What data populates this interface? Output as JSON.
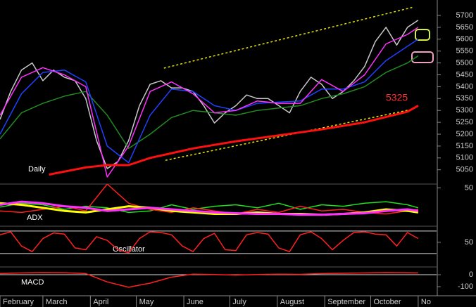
{
  "chart_data": [
    {
      "type": "line",
      "label": "Daily",
      "annotation": "5325",
      "xlim": [
        0,
        285
      ],
      "ylim": [
        4990,
        5765
      ],
      "yticks": [
        5050,
        5100,
        5150,
        5200,
        5250,
        5300,
        5350,
        5400,
        5450,
        5500,
        5550,
        5600,
        5650,
        5700
      ],
      "series": [
        {
          "color": "#e6e600",
          "dash": true,
          "x": [
            107,
            270
          ],
          "values": [
            5478,
            5735
          ]
        },
        {
          "color": "#e6e600",
          "dash": true,
          "x": [
            108,
            270
          ],
          "values": [
            5090,
            5306
          ]
        },
        {
          "color": "#c8c8c8",
          "x": [
            0,
            7,
            14,
            21,
            28,
            35,
            42,
            49,
            56,
            63,
            70,
            77,
            84,
            91,
            98,
            105,
            112,
            119,
            126,
            133,
            140,
            147,
            154,
            161,
            168,
            175,
            182,
            189,
            196,
            203,
            210,
            217,
            224,
            231,
            238,
            245,
            252,
            259,
            266,
            273
          ],
          "values": [
            5262,
            5380,
            5470,
            5500,
            5425,
            5470,
            5440,
            5425,
            5350,
            5173,
            5055,
            5085,
            5173,
            5320,
            5410,
            5425,
            5395,
            5395,
            5380,
            5320,
            5247,
            5290,
            5320,
            5365,
            5350,
            5350,
            5320,
            5290,
            5380,
            5440,
            5410,
            5350,
            5380,
            5425,
            5485,
            5590,
            5650,
            5575,
            5650,
            5680
          ]
        },
        {
          "color": "#228b22",
          "x": [
            0,
            14,
            28,
            42,
            56,
            70,
            84,
            98,
            112,
            126,
            140,
            154,
            168,
            182,
            196,
            210,
            224,
            238,
            252,
            266,
            273
          ],
          "values": [
            5180,
            5290,
            5330,
            5360,
            5380,
            5280,
            5140,
            5200,
            5270,
            5300,
            5290,
            5280,
            5300,
            5310,
            5320,
            5350,
            5370,
            5400,
            5460,
            5500,
            5530
          ]
        },
        {
          "color": "#2040ff",
          "x": [
            0,
            14,
            28,
            42,
            56,
            70,
            84,
            98,
            112,
            126,
            140,
            154,
            168,
            182,
            196,
            210,
            224,
            238,
            252,
            266,
            273
          ],
          "values": [
            5200,
            5370,
            5460,
            5470,
            5420,
            5150,
            5080,
            5280,
            5390,
            5380,
            5320,
            5300,
            5330,
            5335,
            5340,
            5390,
            5390,
            5420,
            5510,
            5570,
            5600
          ]
        },
        {
          "color": "#ff30ff",
          "x": [
            0,
            14,
            28,
            42,
            56,
            70,
            84,
            98,
            112,
            126,
            140,
            154,
            168,
            182,
            196,
            210,
            224,
            238,
            252,
            266,
            273
          ],
          "values": [
            5280,
            5440,
            5480,
            5450,
            5400,
            5020,
            5150,
            5380,
            5420,
            5370,
            5290,
            5300,
            5340,
            5330,
            5330,
            5430,
            5380,
            5450,
            5580,
            5620,
            5650
          ]
        },
        {
          "color": "#ff1010",
          "width": 3,
          "x": [
            32,
            56,
            70,
            84,
            98,
            126,
            154,
            182,
            210,
            238,
            266,
            273
          ],
          "values": [
            5030,
            5060,
            5070,
            5070,
            5100,
            5140,
            5170,
            5195,
            5220,
            5250,
            5295,
            5320
          ]
        }
      ]
    },
    {
      "type": "line",
      "label": "ADX",
      "xlim": [
        0,
        285
      ],
      "ylim": [
        0,
        55
      ],
      "yticks": [
        50
      ],
      "series": [
        {
          "color": "#20e020",
          "x": [
            0,
            14,
            28,
            42,
            56,
            70,
            84,
            98,
            112,
            126,
            140,
            154,
            168,
            182,
            196,
            210,
            224,
            238,
            252,
            266,
            273
          ],
          "values": [
            25,
            30,
            28,
            22,
            26,
            24,
            18,
            20,
            28,
            22,
            26,
            28,
            24,
            30,
            22,
            28,
            26,
            30,
            32,
            28,
            24
          ]
        },
        {
          "color": "#ff2020",
          "x": [
            0,
            14,
            28,
            42,
            56,
            70,
            84,
            98,
            112,
            126,
            140,
            154,
            168,
            182,
            196,
            210,
            224,
            238,
            252,
            266,
            273
          ],
          "values": [
            20,
            18,
            22,
            26,
            20,
            55,
            30,
            22,
            18,
            24,
            20,
            16,
            22,
            18,
            26,
            20,
            22,
            18,
            16,
            20,
            22
          ]
        },
        {
          "color": "#ffff00",
          "width": 3,
          "x": [
            0,
            14,
            28,
            42,
            56,
            70,
            84,
            98,
            112,
            126,
            140,
            154,
            168,
            182,
            196,
            210,
            224,
            238,
            252,
            266,
            273
          ],
          "values": [
            30,
            28,
            24,
            20,
            18,
            22,
            26,
            24,
            20,
            18,
            16,
            16,
            18,
            16,
            16,
            15,
            16,
            18,
            22,
            20,
            18
          ]
        },
        {
          "color": "#ff30ff",
          "width": 3,
          "x": [
            0,
            14,
            28,
            42,
            56,
            70,
            84,
            98,
            112,
            126,
            140,
            154,
            168,
            182,
            196,
            210,
            224,
            238,
            252,
            266,
            273
          ],
          "values": [
            28,
            32,
            30,
            26,
            24,
            20,
            22,
            24,
            22,
            20,
            18,
            17,
            16,
            16,
            15,
            15,
            16,
            17,
            20,
            22,
            20
          ]
        }
      ]
    },
    {
      "type": "line",
      "label": "Oscillator",
      "xlim": [
        0,
        285
      ],
      "ylim": [
        -16,
        93
      ],
      "yticks": [
        50
      ],
      "hlines": [
        20,
        80
      ],
      "series": [
        {
          "color": "#ff2020",
          "x": [
            0,
            7,
            14,
            21,
            28,
            35,
            42,
            49,
            56,
            63,
            70,
            77,
            84,
            91,
            98,
            105,
            112,
            119,
            126,
            133,
            140,
            147,
            154,
            161,
            168,
            175,
            182,
            189,
            196,
            203,
            210,
            217,
            224,
            231,
            238,
            245,
            252,
            259,
            266,
            273
          ],
          "values": [
            70,
            78,
            40,
            25,
            60,
            75,
            72,
            35,
            30,
            65,
            55,
            30,
            22,
            60,
            78,
            76,
            70,
            40,
            25,
            60,
            74,
            30,
            28,
            70,
            76,
            72,
            35,
            25,
            70,
            78,
            60,
            30,
            55,
            76,
            78,
            72,
            70,
            40,
            76,
            60
          ]
        }
      ]
    },
    {
      "type": "line",
      "label": "MACD",
      "xlim": [
        0,
        285
      ],
      "ylim": [
        -176,
        65
      ],
      "yticks": [
        0,
        -100
      ],
      "hlines": [
        0
      ],
      "xticks": [
        {
          "value": 0,
          "label": "February"
        },
        {
          "value": 28,
          "label": "March"
        },
        {
          "value": 59,
          "label": "April"
        },
        {
          "value": 89,
          "label": "May"
        },
        {
          "value": 120,
          "label": "June"
        },
        {
          "value": 150,
          "label": "July"
        },
        {
          "value": 181,
          "label": "August"
        },
        {
          "value": 212,
          "label": "September"
        },
        {
          "value": 242,
          "label": "October"
        },
        {
          "value": 273,
          "label": "No"
        }
      ],
      "series": [
        {
          "color": "#ff2020",
          "x": [
            0,
            14,
            28,
            42,
            56,
            70,
            84,
            98,
            112,
            126,
            140,
            154,
            168,
            182,
            196,
            210,
            224,
            238,
            252,
            266,
            273
          ],
          "values": [
            10,
            15,
            18,
            16,
            10,
            -60,
            -105,
            -70,
            -20,
            5,
            2,
            -3,
            2,
            5,
            3,
            10,
            12,
            15,
            18,
            16,
            15
          ]
        }
      ]
    }
  ]
}
